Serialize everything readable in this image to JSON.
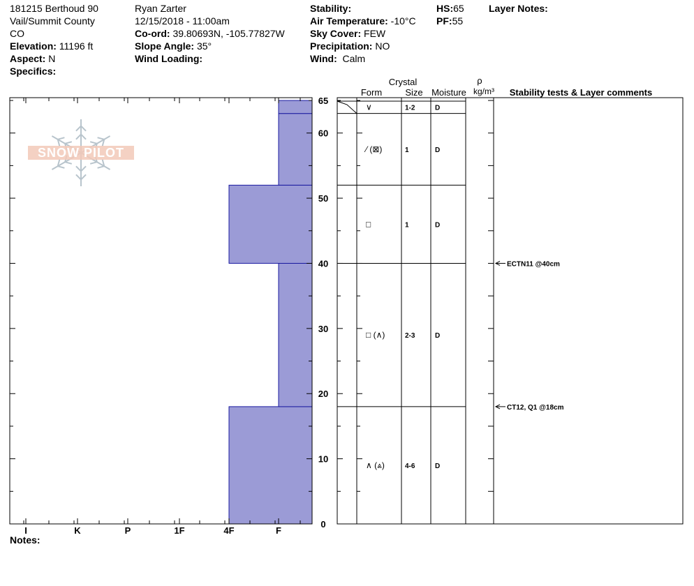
{
  "header": {
    "site": "181215 Berthoud 90",
    "region": "Vail/Summit County",
    "state": "CO",
    "elevation_label": "Elevation:",
    "elevation_value": "11196 ft",
    "aspect_label": "Aspect:",
    "aspect_value": "N",
    "specifics_label": "Specifics:",
    "observer": "Ryan Zarter",
    "datetime": "12/15/2018 - 11:00am",
    "coord_label": "Co-ord:",
    "coord_value": "39.80693N, -105.77827W",
    "slope_label": "Slope Angle:",
    "slope_value": "35°",
    "wind_loading_label": "Wind Loading:",
    "stability_label": "Stability:",
    "air_temp_label": "Air Temperature:",
    "air_temp_value": "-10°C",
    "sky_label": "Sky Cover:",
    "sky_value": "FEW",
    "precip_label": "Precipitation:",
    "precip_value": "NO",
    "wind_label": "Wind:",
    "wind_value": "Calm",
    "hs_label": "HS:",
    "hs_value": "65",
    "pf_label": "PF:",
    "pf_value": "55",
    "layer_notes_label": "Layer Notes:"
  },
  "notes_label": "Notes:",
  "logo_text": "SNOW PILOT",
  "colors": {
    "layer_fill": "#9b9bd6",
    "layer_stroke": "#1a1aa0",
    "accent_logo": "#f2c9b8"
  },
  "columns": {
    "crystal": "Crystal",
    "form": "Form",
    "size": "Size",
    "moisture": "Moisture",
    "rho": "ρ",
    "density_unit": "kg/m³",
    "comments": "Stability tests & Layer comments"
  },
  "chart_data": {
    "type": "bar",
    "orientation": "horizontal",
    "x_tick_labels": [
      "I",
      "K",
      "P",
      "1F",
      "4F",
      "F"
    ],
    "y_ticks": [
      0,
      10,
      20,
      30,
      40,
      50,
      60,
      65
    ],
    "ylim": [
      0,
      65
    ],
    "layers": [
      {
        "bottom": 0,
        "top": 18,
        "hardness": "4F",
        "form": "∧ (⩓)",
        "size": "4-6",
        "moisture": "D"
      },
      {
        "bottom": 18,
        "top": 40,
        "hardness": "F",
        "form": "□ (∧)",
        "size": "2-3",
        "moisture": "D"
      },
      {
        "bottom": 40,
        "top": 52,
        "hardness": "4F",
        "form": "□",
        "size": "1",
        "moisture": "D"
      },
      {
        "bottom": 52,
        "top": 63,
        "hardness": "F",
        "form": "⁄ (⊠)",
        "size": "1",
        "moisture": "D"
      },
      {
        "bottom": 63,
        "top": 65,
        "hardness": "F",
        "form": "∨",
        "size": "1-2",
        "moisture": "D"
      }
    ],
    "tests": [
      {
        "depth": 40,
        "label": "ECTN11 @40cm"
      },
      {
        "depth": 18,
        "label": "CT12, Q1 @18cm"
      }
    ]
  }
}
